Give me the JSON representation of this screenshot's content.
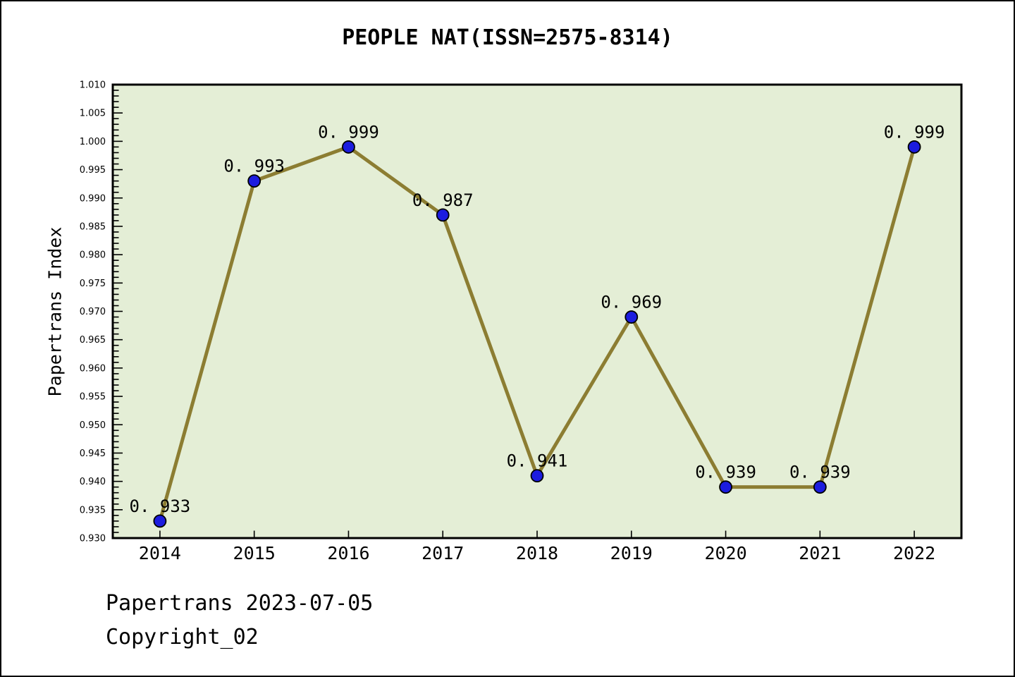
{
  "figure": {
    "background": "#ffffff",
    "border_color": "#000000"
  },
  "chart_data": {
    "type": "line",
    "title": "PEOPLE NAT(ISSN=2575-8314)",
    "ylabel": "Papertrans Index",
    "xlabel": "",
    "x": [
      2014,
      2015,
      2016,
      2017,
      2018,
      2019,
      2020,
      2021,
      2022
    ],
    "values": [
      0.933,
      0.993,
      0.999,
      0.987,
      0.941,
      0.969,
      0.939,
      0.939,
      0.999
    ],
    "point_labels": [
      "0. 933",
      "0. 993",
      "0. 999",
      "0. 987",
      "0. 941",
      "0. 969",
      "0. 939",
      "0. 939",
      "0. 999"
    ],
    "ylim": [
      0.93,
      1.01
    ],
    "xlim": [
      2013.5,
      2022.5
    ],
    "y_tick_step": 0.005,
    "y_minor_tick_step": 0.001,
    "y_tick_decimals": 3,
    "grid": false,
    "legend": "none",
    "colors": {
      "line": "#8C7D32",
      "marker_fill": "#1C1CDF",
      "marker_edge": "#000000",
      "plot_background": "#E4EED6",
      "axis": "#000000",
      "text": "#000000"
    }
  },
  "footer": {
    "line1": "Papertrans 2023-07-05",
    "line2": "Copyright_02"
  }
}
